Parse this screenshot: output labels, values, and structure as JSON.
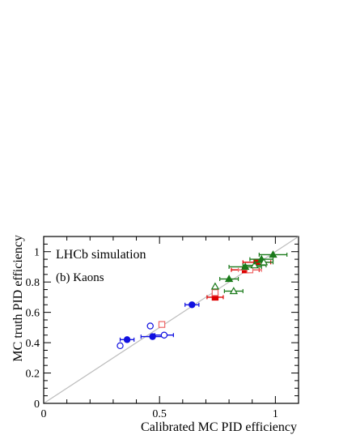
{
  "chart_data": {
    "type": "scatter",
    "title": "",
    "xlabel": "Calibrated MC PID efficiency",
    "ylabel": "MC truth PID efficiency",
    "xlim": [
      0,
      1.1
    ],
    "ylim": [
      0,
      1.1
    ],
    "xticks": [
      "0",
      "0.5",
      "1"
    ],
    "yticks": [
      "0",
      "0.2",
      "0.4",
      "0.6",
      "0.8",
      "1"
    ],
    "annotations": [
      "LHCb simulation",
      "(b) Kaons"
    ],
    "diagonal": true,
    "series": [
      {
        "color": "#1010e0",
        "marker": "circle-filled",
        "points": [
          {
            "x": 0.36,
            "y": 0.42,
            "xerr": 0.03
          },
          {
            "x": 0.47,
            "y": 0.44,
            "xerr": 0.05
          },
          {
            "x": 0.64,
            "y": 0.65,
            "xerr": 0.03
          }
        ]
      },
      {
        "color": "#1010e0",
        "marker": "circle-open",
        "points": [
          {
            "x": 0.33,
            "y": 0.38,
            "xerr": 0.0
          },
          {
            "x": 0.46,
            "y": 0.51,
            "xerr": 0.0
          },
          {
            "x": 0.52,
            "y": 0.45,
            "xerr": 0.04
          }
        ]
      },
      {
        "color": "#dd0000",
        "marker": "square-filled",
        "points": [
          {
            "x": 0.74,
            "y": 0.7,
            "xerr": 0.035
          },
          {
            "x": 0.87,
            "y": 0.88,
            "xerr": 0.06
          },
          {
            "x": 0.92,
            "y": 0.93,
            "xerr": 0.06
          }
        ]
      },
      {
        "color": "#ee6666",
        "marker": "square-open",
        "points": [
          {
            "x": 0.51,
            "y": 0.52,
            "xerr": 0.0
          },
          {
            "x": 0.74,
            "y": 0.73,
            "xerr": 0.0
          },
          {
            "x": 0.89,
            "y": 0.88,
            "xerr": 0.05
          }
        ]
      },
      {
        "color": "#1a7a1a",
        "marker": "triangle-filled",
        "points": [
          {
            "x": 0.8,
            "y": 0.82,
            "xerr": 0.04
          },
          {
            "x": 0.87,
            "y": 0.9,
            "xerr": 0.07
          },
          {
            "x": 0.94,
            "y": 0.95,
            "xerr": 0.05
          },
          {
            "x": 0.99,
            "y": 0.98,
            "xerr": 0.06
          }
        ]
      },
      {
        "color": "#1a7a1a",
        "marker": "triangle-open",
        "points": [
          {
            "x": 0.74,
            "y": 0.77,
            "xerr": 0.0
          },
          {
            "x": 0.82,
            "y": 0.74,
            "xerr": 0.04
          },
          {
            "x": 0.91,
            "y": 0.91,
            "xerr": 0.05
          },
          {
            "x": 0.95,
            "y": 0.93,
            "xerr": 0.04
          }
        ]
      }
    ]
  }
}
